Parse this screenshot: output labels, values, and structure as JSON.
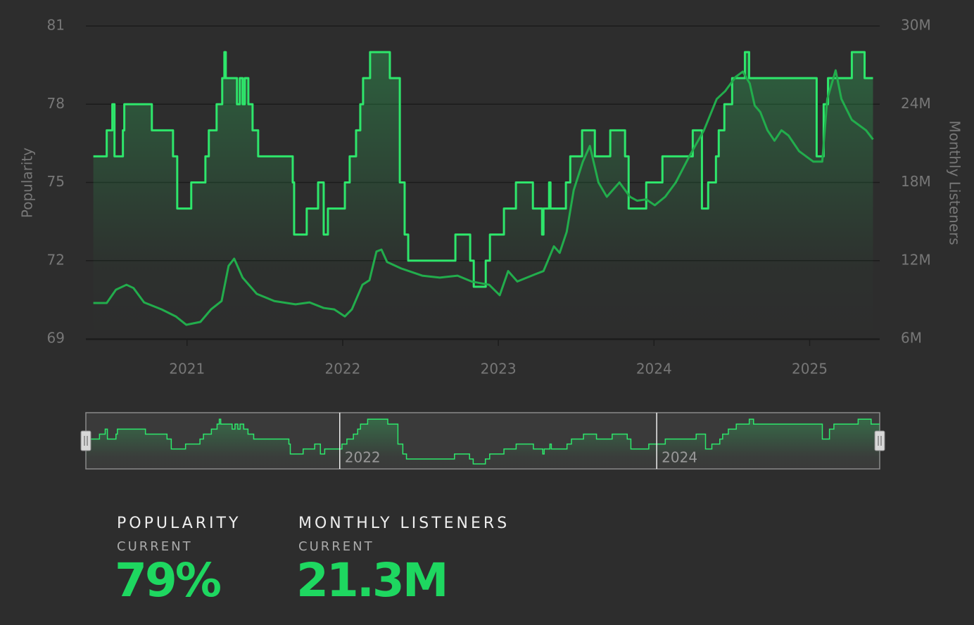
{
  "chart_data": {
    "type": "line",
    "y_label": "Popularity",
    "y2_label": "Monthly Listeners",
    "xlim": [
      2020.35,
      2025.45
    ],
    "xticks": [
      2021,
      2022,
      2023,
      2024,
      2025
    ],
    "ylim": [
      69,
      81
    ],
    "yticks": [
      69,
      72,
      75,
      78,
      81
    ],
    "y2lim": [
      6,
      30
    ],
    "y2ticks": [
      {
        "value": 6,
        "label": "6M"
      },
      {
        "value": 12,
        "label": "12M"
      },
      {
        "value": 18,
        "label": "18M"
      },
      {
        "value": 24,
        "label": "24M"
      },
      {
        "value": 30,
        "label": "30M"
      }
    ],
    "grid": true,
    "series": [
      {
        "name": "Popularity",
        "color": "#2ee66b",
        "line_style": "step",
        "fill": true,
        "x": [
          2020.398,
          2020.484,
          2020.52,
          2020.534,
          2020.588,
          2020.597,
          2020.774,
          2020.91,
          2020.937,
          2021.027,
          2021.118,
          2021.14,
          2021.19,
          2021.226,
          2021.24,
          2021.249,
          2021.321,
          2021.339,
          2021.357,
          2021.371,
          2021.394,
          2021.421,
          2021.457,
          2021.679,
          2021.688,
          2021.769,
          2021.842,
          2021.878,
          2021.905,
          2022.014,
          2022.045,
          2022.086,
          2022.113,
          2022.131,
          2022.176,
          2022.303,
          2022.367,
          2022.398,
          2022.421,
          2022.724,
          2022.819,
          2022.842,
          2022.919,
          2022.946,
          2023.036,
          2023.113,
          2023.222,
          2023.281,
          2023.29,
          2023.326,
          2023.335,
          2023.434,
          2023.462,
          2023.538,
          2023.62,
          2023.719,
          2023.814,
          2023.837,
          2023.95,
          2024.054,
          2024.249,
          2024.308,
          2024.348,
          2024.398,
          2024.416,
          2024.452,
          2024.502,
          2024.584,
          2024.611,
          2025.045,
          2025.09,
          2025.118,
          2025.271,
          2025.353,
          2025.407
        ],
        "values": [
          76,
          77,
          78,
          76,
          77,
          78,
          77,
          76,
          74,
          75,
          76,
          77,
          78,
          79,
          80,
          79,
          78,
          79,
          78,
          79,
          78,
          77,
          76,
          75,
          73,
          74,
          75,
          73,
          74,
          75,
          76,
          77,
          78,
          79,
          80,
          79,
          75,
          73,
          72,
          73,
          72,
          71,
          72,
          73,
          74,
          75,
          74,
          73,
          74,
          75,
          74,
          75,
          76,
          77,
          76,
          77,
          76,
          74,
          75,
          76,
          77,
          74,
          75,
          76,
          77,
          78,
          79,
          80,
          79,
          76,
          78,
          79,
          80,
          79,
          79
        ]
      },
      {
        "name": "Monthly Listeners",
        "color": "#22ad4c",
        "axis": "y2",
        "x": [
          2020.398,
          2020.484,
          2020.543,
          2020.611,
          2020.656,
          2020.724,
          2020.837,
          2020.928,
          2020.995,
          2021.086,
          2021.154,
          2021.222,
          2021.267,
          2021.303,
          2021.357,
          2021.448,
          2021.561,
          2021.697,
          2021.787,
          2021.878,
          2021.946,
          2022.014,
          2022.059,
          2022.127,
          2022.172,
          2022.217,
          2022.249,
          2022.285,
          2022.376,
          2022.511,
          2022.624,
          2022.738,
          2022.828,
          2022.941,
          2023.009,
          2023.063,
          2023.122,
          2023.235,
          2023.29,
          2023.357,
          2023.394,
          2023.439,
          2023.484,
          2023.543,
          2023.588,
          2023.643,
          2023.697,
          2023.778,
          2023.846,
          2023.891,
          2023.95,
          2024.005,
          2024.072,
          2024.14,
          2024.231,
          2024.321,
          2024.403,
          2024.457,
          2024.525,
          2024.57,
          2024.615,
          2024.647,
          2024.683,
          2024.729,
          2024.774,
          2024.819,
          2024.864,
          2024.932,
          2025.023,
          2025.081,
          2025.113,
          2025.167,
          2025.204,
          2025.271,
          2025.362,
          2025.407
        ],
        "values": [
          8.75,
          8.75,
          9.77,
          10.15,
          9.9,
          8.8,
          8.26,
          7.72,
          7.08,
          7.3,
          8.26,
          8.9,
          11.6,
          12.15,
          10.7,
          9.45,
          8.9,
          8.65,
          8.8,
          8.37,
          8.26,
          7.72,
          8.26,
          10.15,
          10.5,
          12.7,
          12.85,
          11.9,
          11.4,
          10.85,
          10.7,
          10.85,
          10.4,
          10.15,
          9.35,
          11.2,
          10.4,
          10.95,
          11.2,
          13.1,
          12.6,
          14.2,
          17.4,
          19.6,
          20.8,
          18.0,
          16.9,
          18.0,
          16.9,
          16.6,
          16.7,
          16.25,
          16.9,
          18.0,
          20.1,
          22.0,
          24.4,
          25.0,
          26.1,
          26.5,
          25.6,
          23.9,
          23.4,
          22.0,
          21.2,
          22.0,
          21.6,
          20.4,
          19.6,
          19.6,
          24.4,
          26.6,
          24.4,
          22.8,
          22.0,
          21.3
        ]
      }
    ],
    "navigator": {
      "ylim": [
        70,
        81.3
      ],
      "xticks": [
        2022,
        2024
      ]
    }
  },
  "stats": [
    {
      "title": "POPULARITY",
      "subtitle": "CURRENT",
      "value": 79,
      "value_label": "79%"
    },
    {
      "title": "MONTHLY LISTENERS",
      "subtitle": "CURRENT",
      "value": 21.3,
      "value_label": "21.3M"
    }
  ]
}
